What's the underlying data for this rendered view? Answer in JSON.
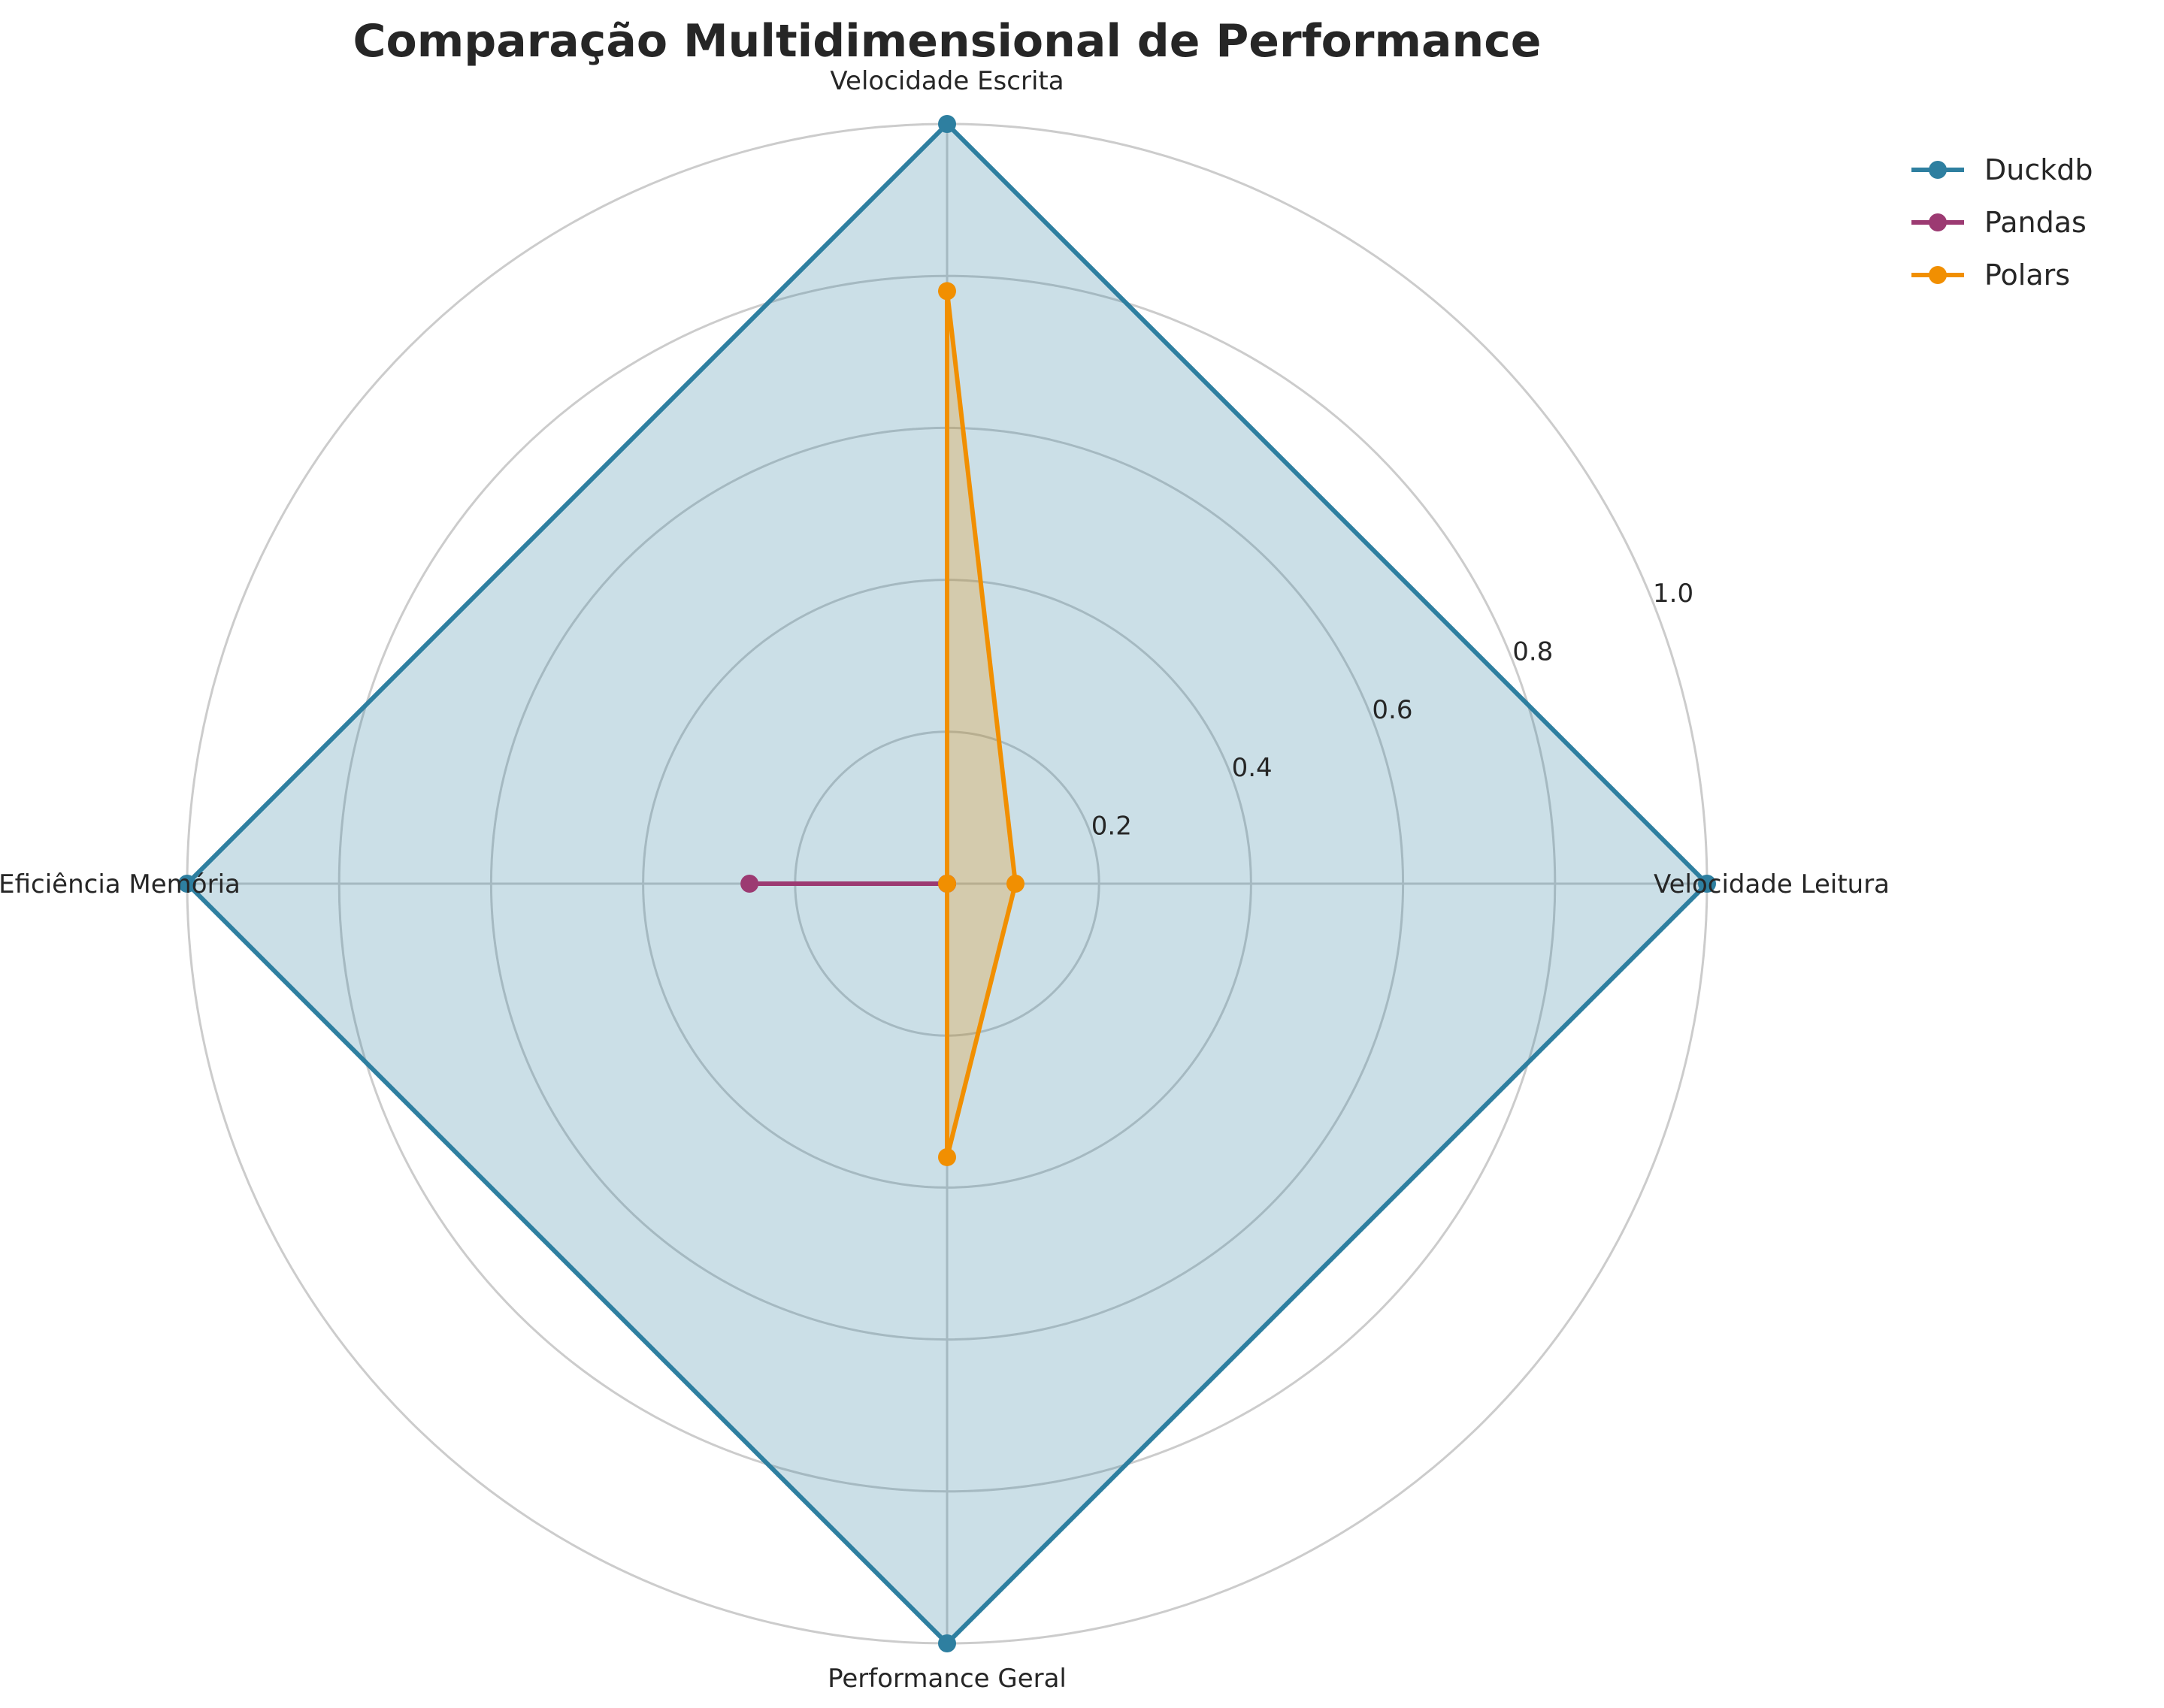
{
  "chart_data": {
    "type": "radar",
    "title": "Comparação Multidimensional de Performance",
    "axes": [
      "Velocidade Leitura",
      "Velocidade Escrita",
      "Eficiência Memória",
      "Performance Geral"
    ],
    "r_ticks": [
      "0.2",
      "0.4",
      "0.6",
      "0.8",
      "1.0"
    ],
    "r_tick_values": [
      0.2,
      0.4,
      0.6,
      0.8,
      1.0
    ],
    "rlim": [
      0,
      1.0
    ],
    "grid": true,
    "legend_position": "top-right",
    "series": [
      {
        "name": "Duckdb",
        "values": [
          1.0,
          1.0,
          1.0,
          1.0
        ],
        "color": "#2e7fa0",
        "fill": true
      },
      {
        "name": "Pandas",
        "values": [
          0.0,
          0.0,
          0.26,
          0.0
        ],
        "color": "#9c3a72",
        "fill": true
      },
      {
        "name": "Polars",
        "values": [
          0.09,
          0.78,
          0.0,
          0.36
        ],
        "color": "#f18f01",
        "fill": true
      }
    ]
  }
}
